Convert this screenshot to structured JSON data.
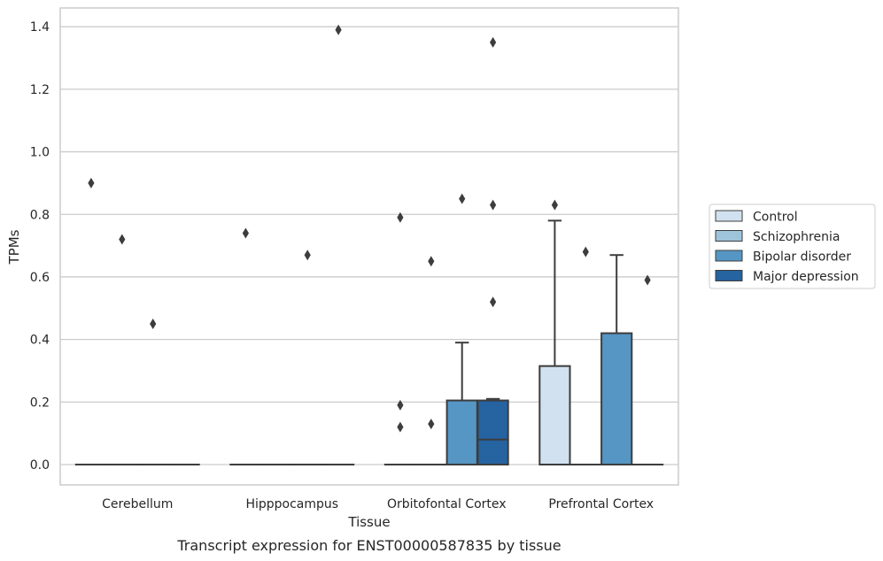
{
  "chart_data": {
    "type": "box",
    "xlabel": "Tissue",
    "ylabel": "TPMs",
    "caption": "Transcript expression for ENST00000587835 by tissue",
    "categories": [
      "Cerebellum",
      "Hipppocampus",
      "Orbitofontal Cortex",
      "Prefrontal Cortex"
    ],
    "ylim": [
      -0.065,
      1.46
    ],
    "yticks": [
      0.0,
      0.2,
      0.4,
      0.6,
      0.8,
      1.0,
      1.2,
      1.4
    ],
    "ytick_labels": [
      "0.0",
      "0.2",
      "0.4",
      "0.6",
      "0.8",
      "1.0",
      "1.2",
      "1.4"
    ],
    "grid": "horizontal",
    "legend_position": "right",
    "series": [
      {
        "name": "Control",
        "color": "#d1e1f0",
        "boxes": [
          {
            "q1": 0,
            "median": 0,
            "q3": 0,
            "whisker_low": 0,
            "whisker_high": 0,
            "outliers": [
              0.9
            ]
          },
          {
            "q1": 0,
            "median": 0,
            "q3": 0,
            "whisker_low": 0,
            "whisker_high": 0,
            "outliers": [
              0.74
            ]
          },
          {
            "q1": 0,
            "median": 0,
            "q3": 0,
            "whisker_low": 0,
            "whisker_high": 0,
            "outliers": [
              0.79,
              0.19,
              0.12
            ]
          },
          {
            "q1": 0,
            "median": 0,
            "q3": 0.315,
            "whisker_low": 0,
            "whisker_high": 0.78,
            "outliers": [
              0.83
            ]
          }
        ]
      },
      {
        "name": "Schizophrenia",
        "color": "#9ec4dc",
        "boxes": [
          {
            "q1": 0,
            "median": 0,
            "q3": 0,
            "whisker_low": 0,
            "whisker_high": 0,
            "outliers": [
              0.72
            ]
          },
          {
            "q1": 0,
            "median": 0,
            "q3": 0,
            "whisker_low": 0,
            "whisker_high": 0,
            "outliers": []
          },
          {
            "q1": 0,
            "median": 0,
            "q3": 0,
            "whisker_low": 0,
            "whisker_high": 0,
            "outliers": [
              0.65,
              0.13
            ]
          },
          {
            "q1": 0,
            "median": 0,
            "q3": 0,
            "whisker_low": 0,
            "whisker_high": 0,
            "outliers": [
              0.68
            ]
          }
        ]
      },
      {
        "name": "Bipolar disorder",
        "color": "#5596c4",
        "boxes": [
          {
            "q1": 0,
            "median": 0,
            "q3": 0,
            "whisker_low": 0,
            "whisker_high": 0,
            "outliers": [
              0.45
            ]
          },
          {
            "q1": 0,
            "median": 0,
            "q3": 0,
            "whisker_low": 0,
            "whisker_high": 0,
            "outliers": [
              0.67
            ]
          },
          {
            "q1": 0,
            "median": 0,
            "q3": 0.205,
            "whisker_low": 0,
            "whisker_high": 0.39,
            "outliers": [
              0.85
            ]
          },
          {
            "q1": 0,
            "median": 0,
            "q3": 0.42,
            "whisker_low": 0,
            "whisker_high": 0.67,
            "outliers": []
          }
        ]
      },
      {
        "name": "Major depression",
        "color": "#2563a1",
        "boxes": [
          {
            "q1": 0,
            "median": 0,
            "q3": 0,
            "whisker_low": 0,
            "whisker_high": 0,
            "outliers": []
          },
          {
            "q1": 0,
            "median": 0,
            "q3": 0,
            "whisker_low": 0,
            "whisker_high": 0,
            "outliers": [
              1.39
            ]
          },
          {
            "q1": 0,
            "median": 0.08,
            "q3": 0.205,
            "whisker_low": 0,
            "whisker_high": 0.21,
            "outliers": [
              1.35,
              0.83,
              0.52
            ]
          },
          {
            "q1": 0,
            "median": 0,
            "q3": 0,
            "whisker_low": 0,
            "whisker_high": 0,
            "outliers": [
              0.59
            ]
          }
        ]
      }
    ]
  }
}
